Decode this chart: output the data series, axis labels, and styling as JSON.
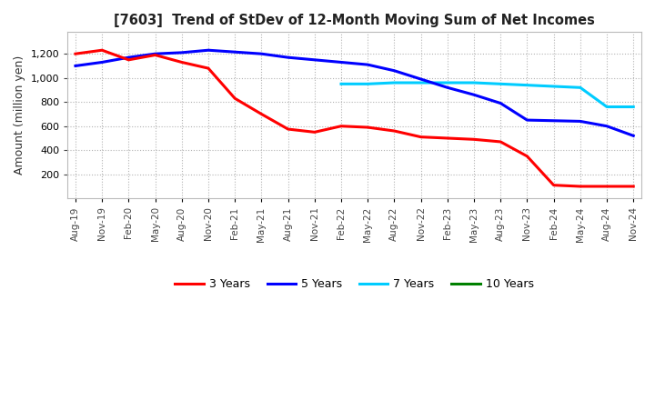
{
  "title": "[7603]  Trend of StDev of 12-Month Moving Sum of Net Incomes",
  "ylabel": "Amount (million yen)",
  "ylim": [
    0,
    1380
  ],
  "yticks": [
    200,
    400,
    600,
    800,
    1000,
    1200
  ],
  "background_color": "#ffffff",
  "grid_color": "#aaaaaa",
  "legend_labels": [
    "3 Years",
    "5 Years",
    "7 Years",
    "10 Years"
  ],
  "legend_colors": [
    "#ff0000",
    "#0000ff",
    "#00ccff",
    "#008000"
  ],
  "x_labels": [
    "Aug-19",
    "Nov-19",
    "Feb-20",
    "May-20",
    "Aug-20",
    "Nov-20",
    "Feb-21",
    "May-21",
    "Aug-21",
    "Nov-21",
    "Feb-22",
    "May-22",
    "Aug-22",
    "Nov-22",
    "Feb-23",
    "May-23",
    "Aug-23",
    "Nov-23",
    "Feb-24",
    "May-24",
    "Aug-24",
    "Nov-24"
  ],
  "series_3yr": [
    1200,
    1230,
    1150,
    1190,
    1130,
    1080,
    830,
    700,
    575,
    550,
    600,
    590,
    560,
    510,
    500,
    490,
    470,
    350,
    110,
    100,
    100,
    100
  ],
  "series_5yr": [
    1100,
    1130,
    1170,
    1200,
    1210,
    1230,
    1215,
    1200,
    1170,
    1150,
    1130,
    1110,
    1060,
    990,
    920,
    860,
    790,
    650,
    645,
    640,
    600,
    520
  ],
  "series_7yr": [
    null,
    null,
    null,
    null,
    null,
    null,
    null,
    null,
    null,
    null,
    950,
    950,
    960,
    960,
    960,
    960,
    950,
    940,
    930,
    920,
    760,
    760
  ],
  "series_10yr": [
    null,
    null,
    null,
    null,
    null,
    null,
    null,
    null,
    null,
    null,
    null,
    null,
    null,
    null,
    null,
    null,
    null,
    null,
    null,
    null,
    null,
    null
  ]
}
